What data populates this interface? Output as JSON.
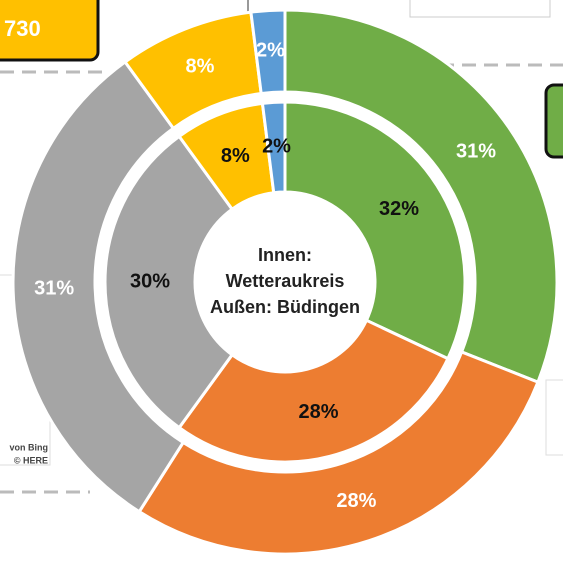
{
  "chart_data": {
    "type": "donut",
    "center_label": [
      "Innen:",
      "Wetteraukreis",
      "Außen: Büdingen"
    ],
    "colors": [
      "#70ad47",
      "#ed7d31",
      "#a5a5a5",
      "#ffc000",
      "#5b9bd5"
    ],
    "series": [
      {
        "ring": "inner",
        "values": [
          32,
          28,
          30,
          8,
          2
        ],
        "value_labels": [
          "32%",
          "28%",
          "30%",
          "8%",
          "2%"
        ]
      },
      {
        "ring": "outer",
        "values": [
          31,
          28,
          31,
          8,
          2
        ],
        "value_labels": [
          "31%",
          "28%",
          "31%",
          "8%",
          "2%"
        ]
      }
    ]
  },
  "map_overlay": {
    "badge": "730",
    "attribution": [
      "von Bing",
      "© HERE"
    ]
  }
}
